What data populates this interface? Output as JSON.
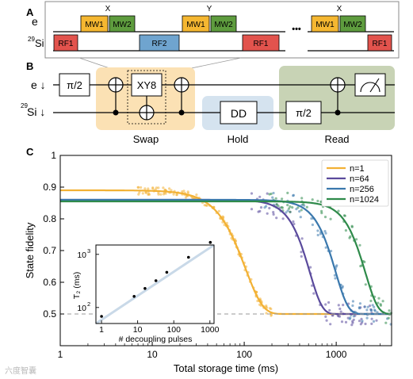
{
  "panel_a": {
    "letter": "A",
    "row_e": "e",
    "row_si_sup": "29",
    "row_si": "Si",
    "pulse_mw1": "MW1",
    "pulse_mw2": "MW2",
    "pulse_rf1": "RF1",
    "pulse_rf2": "RF2",
    "phase_x": "X",
    "phase_y": "Y",
    "ellipsis": "•••",
    "colors": {
      "mw1": "#f5b731",
      "mw2": "#5e9c3e",
      "rf1": "#e2534d",
      "rf2": "#6fa4cf"
    }
  },
  "panel_b": {
    "letter": "B",
    "qubit_e": "e ↓",
    "qubit_si_sup": "29",
    "qubit_si": "Si ↓",
    "gate_pi2": "π/2",
    "gate_xy8": "XY8",
    "gate_dd": "DD",
    "stage_swap": "Swap",
    "stage_hold": "Hold",
    "stage_read": "Read",
    "colors": {
      "swap": "#fbe1b4",
      "hold": "#d5e3ef",
      "read": "#c8d3b5"
    }
  },
  "panel_c": {
    "letter": "C",
    "chart_data": {
      "type": "scatter",
      "xlabel": "Total storage time (ms)",
      "ylabel": "State fidelity",
      "xscale": "log",
      "xlim": [
        1,
        4000
      ],
      "ylim": [
        0.4,
        1.0
      ],
      "xticks": [
        {
          "value": 1,
          "label": "1"
        },
        {
          "value": 10,
          "label": "10"
        },
        {
          "value": 100,
          "label": "100"
        },
        {
          "value": 1000,
          "label": "1000"
        }
      ],
      "yticks": [
        0.5,
        0.6,
        0.7,
        0.8,
        0.9,
        1.0
      ],
      "ytick_labels": [
        "0.5",
        "0.6",
        "0.7",
        "0.8",
        "0.9",
        "1"
      ],
      "reference_line": 0.5,
      "legend_position": "top-right",
      "series": [
        {
          "name": "n=1",
          "color": "#f2b134",
          "plateau": 0.89,
          "t_half": 88,
          "steep": 2.3,
          "x_range": [
            7,
            200
          ]
        },
        {
          "name": "n=64",
          "color": "#5a4a9c",
          "plateau": 0.86,
          "t_half": 460,
          "steep": 3.2,
          "x_range": [
            120,
            2800
          ]
        },
        {
          "name": "n=256",
          "color": "#3a78ad",
          "plateau": 0.86,
          "t_half": 880,
          "steep": 3.2,
          "x_range": [
            150,
            4000
          ]
        },
        {
          "name": "n=1024",
          "color": "#2e8a4a",
          "plateau": 0.855,
          "t_half": 1850,
          "steep": 3.2,
          "x_range": [
            180,
            4000
          ]
        }
      ]
    },
    "inset_data": {
      "type": "scatter",
      "xlabel": "# decoupling pulses",
      "ylabel": "T₂ (ms)",
      "xscale": "log",
      "yscale": "log",
      "xlim": [
        0.7,
        1300
      ],
      "ylim": [
        50,
        1500
      ],
      "xticks": [
        {
          "value": 1,
          "label": "1"
        },
        {
          "value": 10,
          "label": "10"
        },
        {
          "value": 100,
          "label": "100"
        },
        {
          "value": 1000,
          "label": "1000"
        }
      ],
      "yticks": [
        {
          "value": 100,
          "label_base": "10",
          "label_exp": "2"
        },
        {
          "value": 1000,
          "label_base": "10",
          "label_exp": "3"
        }
      ],
      "points": [
        {
          "x": 1,
          "y": 68
        },
        {
          "x": 8,
          "y": 162
        },
        {
          "x": 16,
          "y": 228
        },
        {
          "x": 32,
          "y": 320
        },
        {
          "x": 64,
          "y": 460
        },
        {
          "x": 256,
          "y": 880
        },
        {
          "x": 1024,
          "y": 1680
        }
      ],
      "fit": {
        "x": [
          0.7,
          1300
        ],
        "y": [
          46,
          1720
        ]
      }
    }
  },
  "watermark": "六度智囊"
}
